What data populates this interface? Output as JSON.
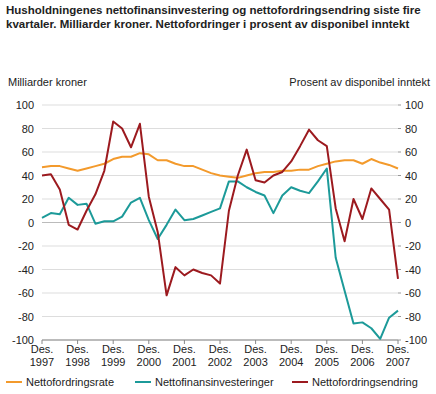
{
  "chart_data": {
    "type": "line",
    "title": "Husholdningenes nettofinansinvestering og nettofordringsendring siste fire kvartaler. Milliarder kroner. Nettofordringer i prosent av disponibel inntekt",
    "ylabel": "Milliarder kroner",
    "y2label": "Prosent av disponibel inntekt",
    "categories": [
      "Des. 1997",
      null,
      null,
      null,
      "Des. 1998",
      null,
      null,
      null,
      "Des. 1999",
      null,
      null,
      null,
      "Des. 2000",
      null,
      null,
      null,
      "Des. 2001",
      null,
      null,
      null,
      "Des. 2002",
      null,
      null,
      null,
      "Des. 2003",
      null,
      null,
      null,
      "Des. 2004",
      null,
      null,
      null,
      "Des. 2005",
      null,
      null,
      null,
      "Des. 2006",
      null,
      null,
      null,
      "Des. 2007"
    ],
    "ylim": [
      -100,
      100
    ],
    "yticks": [
      -100,
      -80,
      -60,
      -40,
      -20,
      0,
      20,
      40,
      60,
      80,
      100
    ],
    "y2lim": [
      -100,
      100
    ],
    "y2ticks": [
      -100,
      -80,
      -60,
      -40,
      -20,
      0,
      20,
      40,
      60,
      80,
      100
    ],
    "grid": true,
    "legend": "bottom",
    "series": [
      {
        "name": "Nettofordringsrate",
        "color": "#f39a2c",
        "axis": "y2",
        "values": [
          47,
          48,
          48,
          46,
          44,
          46,
          48,
          50,
          54,
          56,
          56,
          59,
          58,
          53,
          53,
          50,
          48,
          48,
          45,
          42,
          40,
          39,
          38,
          40,
          42,
          43,
          43,
          44,
          44,
          45,
          45,
          48,
          50,
          52,
          53,
          53,
          50,
          54,
          51,
          49,
          46
        ]
      },
      {
        "name": "Nettofinansinvesteringer",
        "color": "#1c9a99",
        "values": [
          4,
          8,
          7,
          21,
          15,
          16,
          -1,
          1,
          1,
          5,
          17,
          21,
          2,
          -14,
          -2,
          11,
          2,
          3,
          6,
          9,
          12,
          35,
          35,
          30,
          26,
          23,
          8,
          23,
          30,
          27,
          25,
          35,
          46,
          -30,
          -58,
          -86,
          -85,
          -90,
          -99,
          -81,
          -75
        ]
      },
      {
        "name": "Nettofordringsendring",
        "color": "#9c1a1f",
        "values": [
          40,
          41,
          28,
          -2,
          -6,
          10,
          24,
          44,
          86,
          80,
          64,
          84,
          22,
          -8,
          -62,
          -38,
          -45,
          -40,
          -43,
          -45,
          -52,
          10,
          40,
          62,
          36,
          34,
          40,
          43,
          52,
          65,
          79,
          70,
          65,
          12,
          -16,
          20,
          3,
          29,
          20,
          11,
          -48
        ]
      }
    ]
  }
}
